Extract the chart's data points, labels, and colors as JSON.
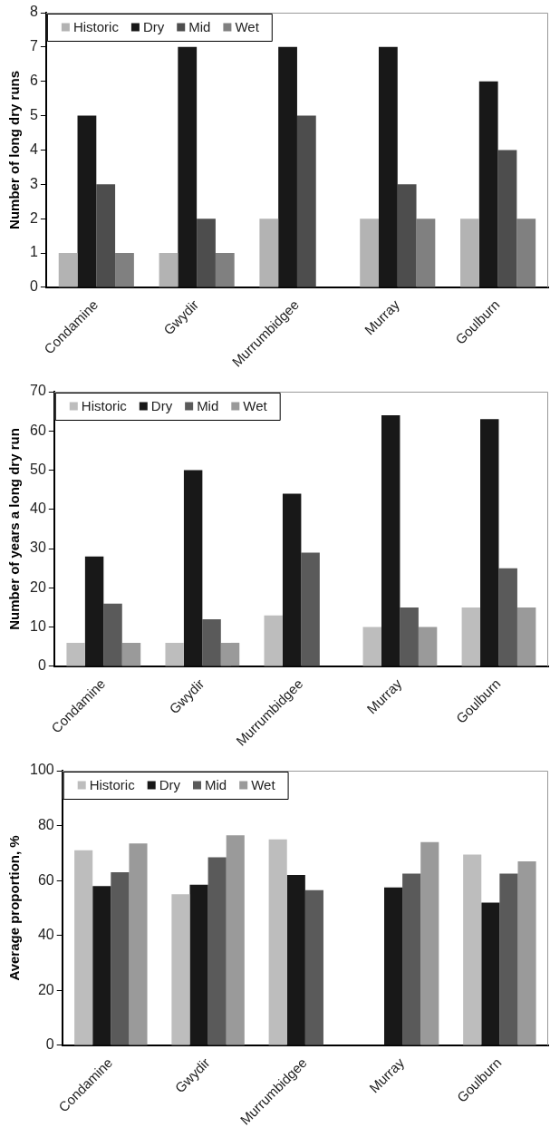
{
  "chart_data": [
    {
      "type": "bar",
      "ylabel": "Number of long dry runs",
      "categories": [
        "Condamine",
        "Gwydir",
        "Murrumbidgee",
        "Murray",
        "Goulburn"
      ],
      "ylim": [
        0,
        8
      ],
      "yticks": [
        0,
        1,
        2,
        3,
        4,
        5,
        6,
        7,
        8
      ],
      "grid": false,
      "legend": "top left",
      "series": [
        {
          "name": "Historic",
          "color": "#b3b3b3",
          "values": [
            1,
            1,
            2,
            2,
            2
          ]
        },
        {
          "name": "Dry",
          "color": "#181818",
          "values": [
            5,
            7,
            7,
            7,
            6
          ]
        },
        {
          "name": "Mid",
          "color": "#4d4d4d",
          "values": [
            3,
            2,
            5,
            3,
            4
          ]
        },
        {
          "name": "Wet",
          "color": "#808080",
          "values": [
            1,
            1,
            0,
            2,
            2
          ]
        }
      ]
    },
    {
      "type": "bar",
      "ylabel": "Number of years a long dry run",
      "categories": [
        "Condamine",
        "Gwydir",
        "Murrumbidgee",
        "Murray",
        "Goulburn"
      ],
      "ylim": [
        0,
        70
      ],
      "yticks": [
        0,
        10,
        20,
        30,
        40,
        50,
        60,
        70
      ],
      "grid": false,
      "legend": "top left",
      "series": [
        {
          "name": "Historic",
          "color": "#bdbdbd",
          "values": [
            6,
            6,
            13,
            10,
            15
          ]
        },
        {
          "name": "Dry",
          "color": "#181818",
          "values": [
            28,
            50,
            44,
            64,
            63
          ]
        },
        {
          "name": "Mid",
          "color": "#5a5a5a",
          "values": [
            16,
            12,
            29,
            15,
            25
          ]
        },
        {
          "name": "Wet",
          "color": "#9a9a9a",
          "values": [
            6,
            6,
            0,
            10,
            15
          ]
        }
      ]
    },
    {
      "type": "bar",
      "ylabel": "Average proportion, %",
      "categories": [
        "Condamine",
        "Gwydir",
        "Murrumbidgee",
        "Murray",
        "Goulburn"
      ],
      "ylim": [
        0,
        100
      ],
      "yticks": [
        0,
        20,
        40,
        60,
        80,
        100
      ],
      "grid": false,
      "legend": "top left",
      "series": [
        {
          "name": "Historic",
          "color": "#bdbdbd",
          "values": [
            71,
            55,
            75,
            null,
            69.5
          ]
        },
        {
          "name": "Dry",
          "color": "#181818",
          "values": [
            58,
            58.5,
            62,
            57.5,
            52
          ]
        },
        {
          "name": "Mid",
          "color": "#5a5a5a",
          "values": [
            63,
            68.5,
            56.5,
            62.5,
            62.5
          ]
        },
        {
          "name": "Wet",
          "color": "#9a9a9a",
          "values": [
            73.5,
            76.5,
            null,
            74,
            67
          ]
        }
      ]
    }
  ]
}
